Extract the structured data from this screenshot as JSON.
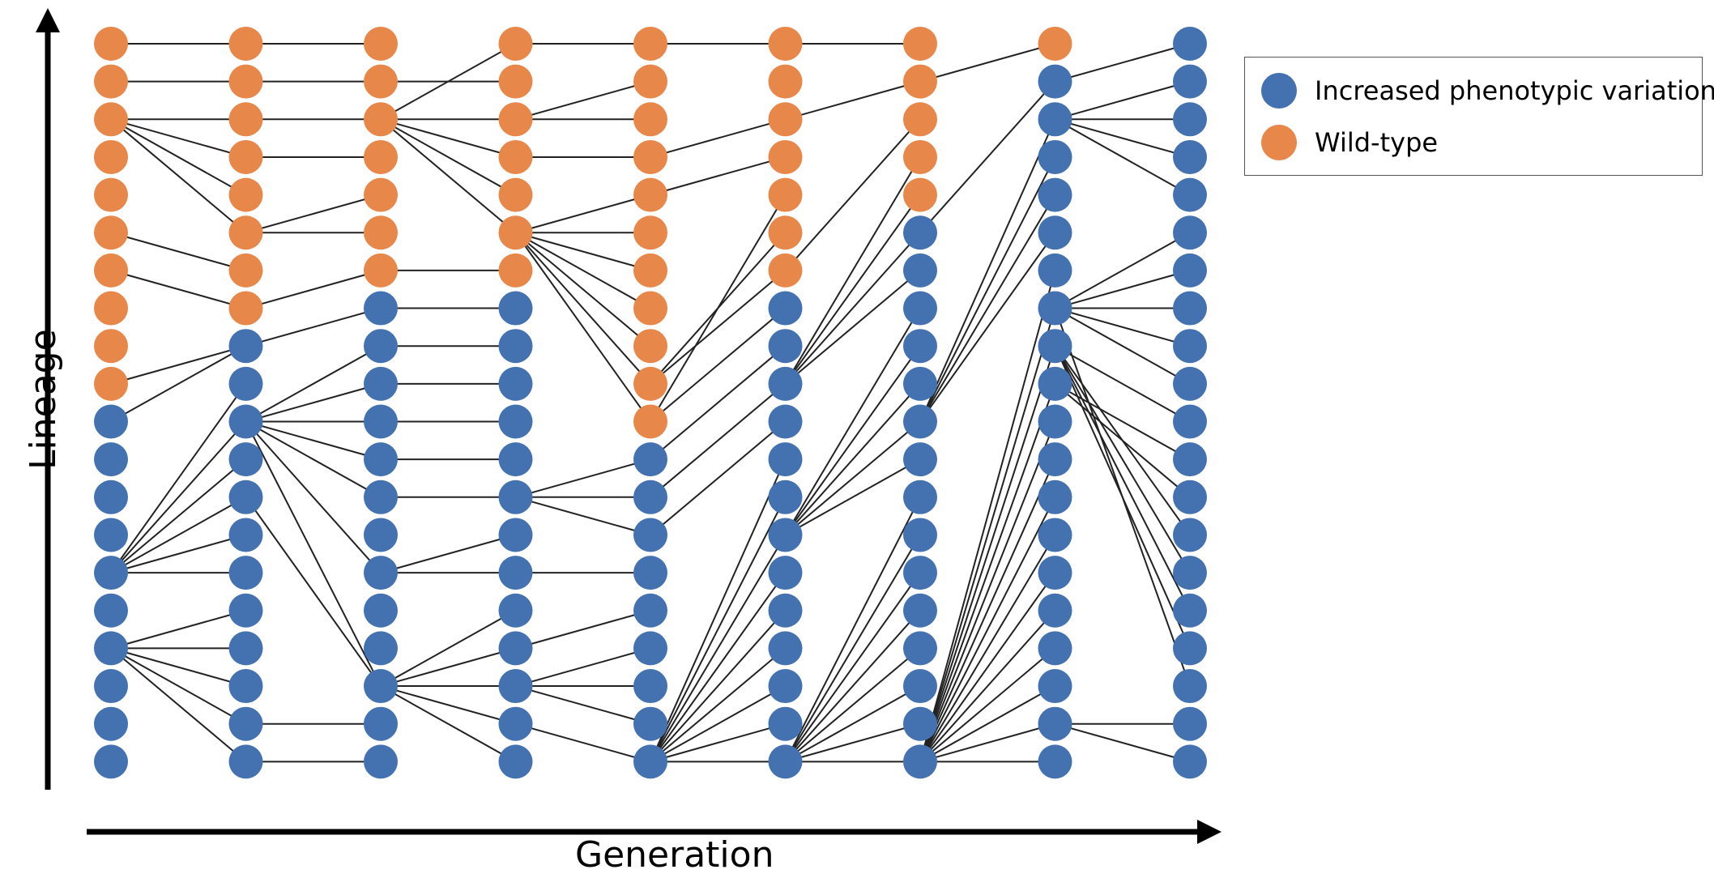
{
  "axes": {
    "x_label": "Generation",
    "y_label": "Lineage"
  },
  "legend": [
    {
      "label": "Increased phenotypic variation",
      "color": "#4472b0"
    },
    {
      "label": "Wild-type",
      "color": "#e8874a"
    }
  ],
  "colors": {
    "blue": "#4472b0",
    "orange": "#e8874a",
    "edge": "#222222",
    "axis": "#000000"
  },
  "generations": [
    {
      "orange_rows": [
        0,
        1,
        2,
        3,
        4,
        5,
        6,
        7,
        8,
        9
      ]
    },
    {
      "orange_rows": [
        0,
        1,
        2,
        3,
        4,
        5,
        6,
        7
      ]
    },
    {
      "orange_rows": [
        0,
        1,
        2,
        3,
        4,
        5,
        6
      ]
    },
    {
      "orange_rows": [
        0,
        1,
        2,
        3,
        4,
        5,
        6
      ]
    },
    {
      "orange_rows": [
        0,
        1,
        2,
        3,
        4,
        5,
        6,
        7,
        8,
        9,
        10
      ]
    },
    {
      "orange_rows": [
        0,
        1,
        2,
        3,
        4,
        5,
        6
      ]
    },
    {
      "orange_rows": [
        0,
        1,
        2,
        3,
        4
      ]
    },
    {
      "orange_rows": [
        0
      ]
    },
    {
      "orange_rows": []
    }
  ],
  "edges": [
    [
      [
        0,
        0
      ],
      [
        1,
        2,
        [
          0,
          1,
          2,
          3,
          4,
          5
        ],
        5,
        6,
        7
      ],
      [
        [
          8,
          9
        ]
      ],
      [
        10,
        [
          11,
          12,
          13,
          14
        ]
      ],
      [
        11,
        12,
        13,
        14,
        15,
        16
      ],
      [
        16,
        17,
        18,
        19
      ],
      []
    ],
    [
      [
        0
      ],
      [
        1
      ],
      [
        2
      ],
      [
        2
      ],
      [
        2
      ],
      [
        3,
        4,
        5
      ],
      [
        5
      ],
      [
        6
      ],
      [
        5,
        6
      ],
      [],
      [],
      [
        [
          7,
          8,
          9,
          10
        ],
        [
          10,
          11,
          12,
          13,
          14
        ]
      ],
      [
        10,
        11,
        12,
        13,
        14
      ],
      [],
      [],
      [],
      [
        16
      ],
      [
        17
      ],
      [
        18
      ],
      []
    ],
    [
      [
        0
      ],
      [
        2
      ],
      [
        2,
        3,
        4,
        5,
        6
      ],
      [],
      [],
      [],
      [
        6
      ],
      [],
      [],
      [],
      [],
      [],
      [],
      [],
      [],
      [],
      [],
      [],
      [],
      []
    ]
  ],
  "edge_list": [
    [
      0,
      0,
      0
    ],
    [
      0,
      1,
      1
    ],
    [
      0,
      2,
      2
    ],
    [
      0,
      2,
      3
    ],
    [
      0,
      2,
      4
    ],
    [
      0,
      2,
      5
    ],
    [
      0,
      5,
      6
    ],
    [
      0,
      6,
      7
    ],
    [
      0,
      9,
      8
    ],
    [
      0,
      10,
      8
    ],
    [
      0,
      14,
      9
    ],
    [
      0,
      14,
      10
    ],
    [
      0,
      14,
      11
    ],
    [
      0,
      14,
      12
    ],
    [
      0,
      14,
      13
    ],
    [
      0,
      14,
      14
    ],
    [
      0,
      16,
      15
    ],
    [
      0,
      16,
      16
    ],
    [
      0,
      16,
      17
    ],
    [
      0,
      16,
      18
    ],
    [
      0,
      16,
      19
    ],
    [
      1,
      0,
      0
    ],
    [
      1,
      1,
      1
    ],
    [
      1,
      2,
      2
    ],
    [
      1,
      3,
      3
    ],
    [
      1,
      5,
      4
    ],
    [
      1,
      5,
      5
    ],
    [
      1,
      7,
      6
    ],
    [
      1,
      8,
      7
    ],
    [
      1,
      10,
      8
    ],
    [
      1,
      10,
      9
    ],
    [
      1,
      10,
      10
    ],
    [
      1,
      10,
      11
    ],
    [
      1,
      10,
      12
    ],
    [
      1,
      10,
      14
    ],
    [
      1,
      10,
      17
    ],
    [
      1,
      12,
      17
    ],
    [
      1,
      18,
      18
    ],
    [
      1,
      19,
      19
    ],
    [
      2,
      2,
      0
    ],
    [
      2,
      1,
      1
    ],
    [
      2,
      2,
      2
    ],
    [
      2,
      2,
      3
    ],
    [
      2,
      2,
      4
    ],
    [
      2,
      2,
      5
    ],
    [
      2,
      6,
      6
    ],
    [
      2,
      7,
      7
    ],
    [
      2,
      8,
      8
    ],
    [
      2,
      9,
      9
    ],
    [
      2,
      10,
      10
    ],
    [
      2,
      11,
      11
    ],
    [
      2,
      12,
      12
    ],
    [
      2,
      14,
      13
    ],
    [
      2,
      14,
      14
    ],
    [
      2,
      17,
      15
    ],
    [
      2,
      17,
      16
    ],
    [
      2,
      17,
      17
    ],
    [
      2,
      17,
      18
    ],
    [
      2,
      17,
      19
    ],
    [
      3,
      0,
      0
    ],
    [
      3,
      2,
      1
    ],
    [
      3,
      2,
      2
    ],
    [
      3,
      3,
      3
    ],
    [
      3,
      5,
      4
    ],
    [
      3,
      5,
      5
    ],
    [
      3,
      5,
      6
    ],
    [
      3,
      5,
      7
    ],
    [
      3,
      5,
      8
    ],
    [
      3,
      5,
      9
    ],
    [
      3,
      5,
      10
    ],
    [
      3,
      12,
      11
    ],
    [
      3,
      12,
      12
    ],
    [
      3,
      12,
      13
    ],
    [
      3,
      14,
      14
    ],
    [
      3,
      16,
      15
    ],
    [
      3,
      17,
      16
    ],
    [
      3,
      17,
      17
    ],
    [
      3,
      17,
      18
    ],
    [
      3,
      18,
      19
    ],
    [
      4,
      0,
      0
    ],
    [
      4,
      3,
      2
    ],
    [
      4,
      4,
      3
    ],
    [
      4,
      10,
      4
    ],
    [
      4,
      9,
      5
    ],
    [
      4,
      9,
      6
    ],
    [
      4,
      10,
      7
    ],
    [
      4,
      11,
      8
    ],
    [
      4,
      12,
      9
    ],
    [
      4,
      13,
      10
    ],
    [
      4,
      19,
      11
    ],
    [
      4,
      19,
      12
    ],
    [
      4,
      19,
      13
    ],
    [
      4,
      19,
      14
    ],
    [
      4,
      19,
      15
    ],
    [
      4,
      19,
      16
    ],
    [
      4,
      19,
      17
    ],
    [
      4,
      19,
      18
    ],
    [
      4,
      19,
      19
    ],
    [
      5,
      0,
      0
    ],
    [
      5,
      2,
      1
    ],
    [
      5,
      6,
      2
    ],
    [
      5,
      9,
      3
    ],
    [
      5,
      9,
      4
    ],
    [
      5,
      9,
      5
    ],
    [
      5,
      9,
      6
    ],
    [
      5,
      13,
      7
    ],
    [
      5,
      13,
      8
    ],
    [
      5,
      13,
      9
    ],
    [
      5,
      13,
      10
    ],
    [
      5,
      13,
      11
    ],
    [
      5,
      19,
      12
    ],
    [
      5,
      19,
      13
    ],
    [
      5,
      19,
      14
    ],
    [
      5,
      19,
      15
    ],
    [
      5,
      19,
      16
    ],
    [
      5,
      19,
      17
    ],
    [
      5,
      19,
      18
    ],
    [
      5,
      19,
      19
    ],
    [
      6,
      1,
      0
    ],
    [
      6,
      5,
      1
    ],
    [
      6,
      10,
      2
    ],
    [
      6,
      10,
      3
    ],
    [
      6,
      10,
      4
    ],
    [
      6,
      10,
      5
    ],
    [
      6,
      19,
      6
    ],
    [
      6,
      19,
      7
    ],
    [
      6,
      19,
      8
    ],
    [
      6,
      19,
      9
    ],
    [
      6,
      19,
      10
    ],
    [
      6,
      19,
      11
    ],
    [
      6,
      19,
      12
    ],
    [
      6,
      19,
      13
    ],
    [
      6,
      19,
      14
    ],
    [
      6,
      19,
      15
    ],
    [
      6,
      19,
      16
    ],
    [
      6,
      19,
      17
    ],
    [
      6,
      19,
      18
    ],
    [
      6,
      19,
      19
    ],
    [
      7,
      1,
      0
    ],
    [
      7,
      2,
      1
    ],
    [
      7,
      2,
      2
    ],
    [
      7,
      2,
      3
    ],
    [
      7,
      2,
      4
    ],
    [
      7,
      7,
      5
    ],
    [
      7,
      7,
      6
    ],
    [
      7,
      7,
      7
    ],
    [
      7,
      7,
      8
    ],
    [
      7,
      7,
      9
    ],
    [
      7,
      8,
      10
    ],
    [
      7,
      9,
      11
    ],
    [
      7,
      9,
      12
    ],
    [
      7,
      8,
      13
    ],
    [
      7,
      8,
      14
    ],
    [
      7,
      8,
      15
    ],
    [
      7,
      8,
      16
    ],
    [
      7,
      7,
      17
    ],
    [
      7,
      18,
      18
    ],
    [
      7,
      18,
      19
    ]
  ]
}
